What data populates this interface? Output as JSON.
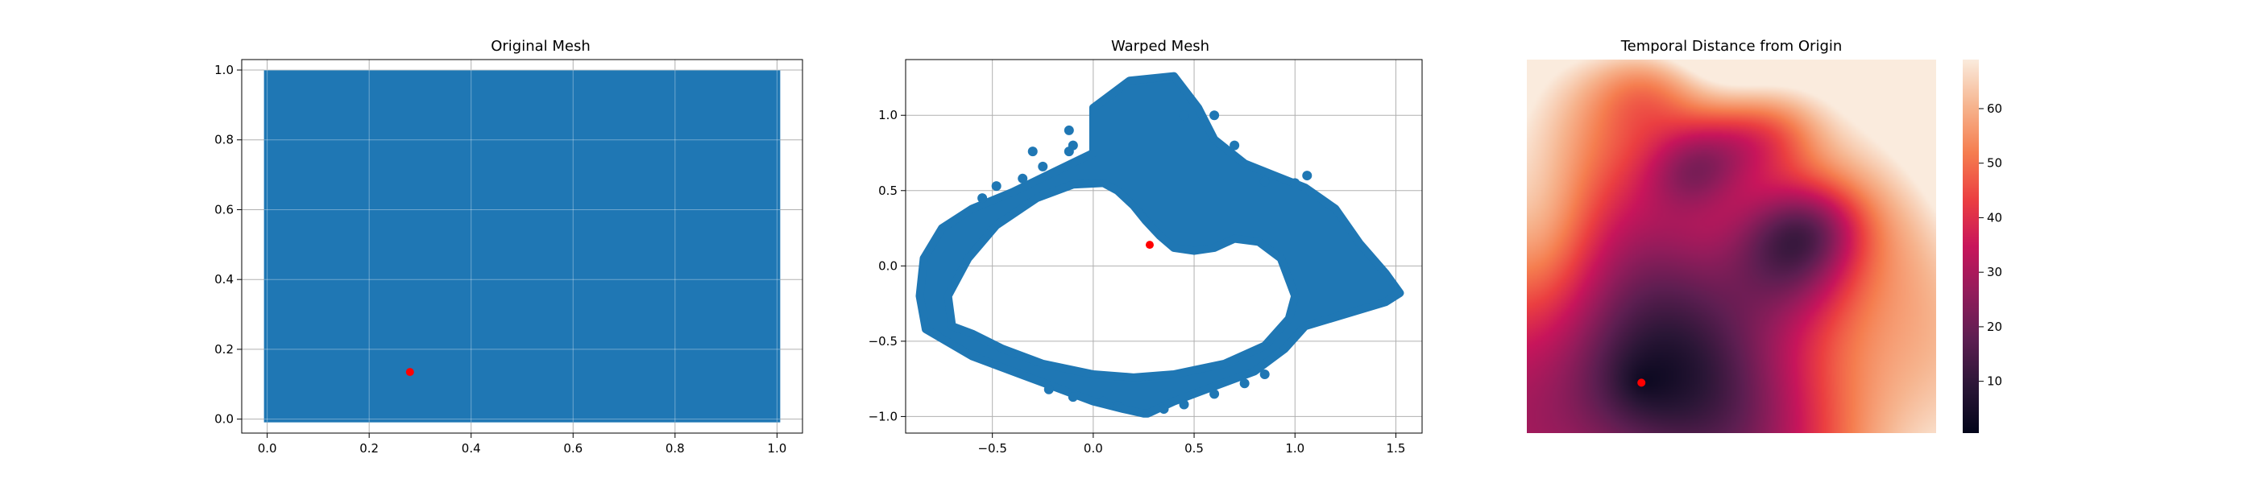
{
  "chart_data": [
    {
      "type": "scatter",
      "title": "Original Mesh",
      "xlabel": "",
      "ylabel": "",
      "xlim": [
        -0.05,
        1.05
      ],
      "ylim": [
        -0.04,
        1.03
      ],
      "grid": true,
      "xticks": [
        0.0,
        0.2,
        0.4,
        0.6,
        0.8,
        1.0
      ],
      "xtick_labels": [
        "0.0",
        "0.2",
        "0.4",
        "0.6",
        "0.8",
        "1.0"
      ],
      "yticks": [
        0.0,
        0.2,
        0.4,
        0.6,
        0.8,
        1.0
      ],
      "ytick_labels": [
        "0.0",
        "0.2",
        "0.4",
        "0.6",
        "0.8",
        "1.0"
      ],
      "mesh_extent": {
        "x": [
          0.0,
          1.0
        ],
        "y": [
          0.0,
          0.99
        ]
      },
      "mesh_color": "#1f77b4",
      "origin_point": {
        "x": 0.28,
        "y": 0.135,
        "color": "#ff0000"
      }
    },
    {
      "type": "scatter",
      "title": "Warped Mesh",
      "xlabel": "",
      "ylabel": "",
      "xlim": [
        -0.93,
        1.63
      ],
      "ylim": [
        -1.11,
        1.37
      ],
      "grid": true,
      "xticks": [
        -0.5,
        0.0,
        0.5,
        1.0,
        1.5
      ],
      "xtick_labels": [
        "−0.5",
        "0.0",
        "0.5",
        "1.0",
        "1.5"
      ],
      "yticks": [
        -1.0,
        -0.5,
        0.0,
        0.5,
        1.0
      ],
      "ytick_labels": [
        "−1.0",
        "−0.5",
        "0.0",
        "0.5",
        "1.0"
      ],
      "mesh_color": "#1f77b4",
      "outer_boundary": [
        [
          -0.83,
          -0.42
        ],
        [
          -0.86,
          -0.2
        ],
        [
          -0.84,
          0.05
        ],
        [
          -0.75,
          0.25
        ],
        [
          -0.6,
          0.38
        ],
        [
          -0.4,
          0.49
        ],
        [
          -0.2,
          0.62
        ],
        [
          0.0,
          0.75
        ],
        [
          0.0,
          1.05
        ],
        [
          0.18,
          1.23
        ],
        [
          0.4,
          1.26
        ],
        [
          0.52,
          1.05
        ],
        [
          0.6,
          0.84
        ],
        [
          0.75,
          0.68
        ],
        [
          0.9,
          0.6
        ],
        [
          1.05,
          0.52
        ],
        [
          1.2,
          0.38
        ],
        [
          1.32,
          0.15
        ],
        [
          1.45,
          -0.05
        ],
        [
          1.52,
          -0.18
        ],
        [
          1.45,
          -0.24
        ],
        [
          1.3,
          -0.3
        ],
        [
          1.05,
          -0.4
        ],
        [
          0.95,
          -0.55
        ],
        [
          0.8,
          -0.7
        ],
        [
          0.6,
          -0.8
        ],
        [
          0.4,
          -0.9
        ],
        [
          0.27,
          -0.98
        ],
        [
          0.25,
          -0.98
        ],
        [
          0.15,
          -0.95
        ],
        [
          0.0,
          -0.9
        ],
        [
          -0.2,
          -0.8
        ],
        [
          -0.4,
          -0.7
        ],
        [
          -0.6,
          -0.6
        ]
      ],
      "inner_hole": [
        [
          -0.7,
          -0.4
        ],
        [
          -0.72,
          -0.2
        ],
        [
          -0.62,
          0.05
        ],
        [
          -0.48,
          0.27
        ],
        [
          -0.28,
          0.45
        ],
        [
          -0.1,
          0.54
        ],
        [
          0.05,
          0.55
        ],
        [
          0.12,
          0.5
        ],
        [
          0.2,
          0.4
        ],
        [
          0.26,
          0.3
        ],
        [
          0.33,
          0.2
        ],
        [
          0.4,
          0.12
        ],
        [
          0.5,
          0.1
        ],
        [
          0.6,
          0.12
        ],
        [
          0.7,
          0.18
        ],
        [
          0.82,
          0.16
        ],
        [
          0.93,
          0.05
        ],
        [
          1.0,
          -0.2
        ],
        [
          0.97,
          -0.35
        ],
        [
          0.85,
          -0.53
        ],
        [
          0.65,
          -0.65
        ],
        [
          0.4,
          -0.72
        ],
        [
          0.2,
          -0.74
        ],
        [
          0.0,
          -0.72
        ],
        [
          -0.25,
          -0.65
        ],
        [
          -0.45,
          -0.55
        ],
        [
          -0.6,
          -0.45
        ]
      ],
      "spur_points": [
        [
          -0.55,
          0.45
        ],
        [
          -0.48,
          0.53
        ],
        [
          -0.35,
          0.58
        ],
        [
          -0.25,
          0.66
        ],
        [
          -0.12,
          0.76
        ],
        [
          -0.3,
          0.76
        ],
        [
          -0.12,
          0.9
        ],
        [
          -0.1,
          0.8
        ],
        [
          0.45,
          1.0
        ],
        [
          0.6,
          1.0
        ],
        [
          0.7,
          0.8
        ],
        [
          0.85,
          0.56
        ],
        [
          1.0,
          0.55
        ],
        [
          1.06,
          0.6
        ],
        [
          -0.22,
          -0.82
        ],
        [
          -0.1,
          -0.87
        ],
        [
          0.05,
          -0.9
        ],
        [
          0.12,
          -0.93
        ],
        [
          0.35,
          -0.95
        ],
        [
          0.45,
          -0.92
        ],
        [
          0.6,
          -0.85
        ],
        [
          0.75,
          -0.78
        ],
        [
          0.85,
          -0.72
        ]
      ],
      "origin_point": {
        "x": 0.28,
        "y": 0.14,
        "color": "#ff0000"
      }
    },
    {
      "type": "heatmap",
      "title": "Temporal Distance from Origin",
      "xlim": [
        0,
        1
      ],
      "ylim": [
        0,
        1
      ],
      "colormap": "rocket",
      "colorbar": {
        "range": [
          0.5,
          69
        ],
        "ticks": [
          10,
          20,
          30,
          40,
          50,
          60
        ],
        "tick_labels": [
          "10",
          "20",
          "30",
          "40",
          "50",
          "60"
        ],
        "colors": [
          "#03051a",
          "#2a1636",
          "#5c1e51",
          "#921c5b",
          "#c8155b",
          "#eb3f41",
          "#f57d4f",
          "#f6b48e",
          "#faebdd"
        ]
      },
      "origin_point": {
        "x": 0.28,
        "y": 0.135,
        "color": "#ff0000"
      }
    }
  ]
}
